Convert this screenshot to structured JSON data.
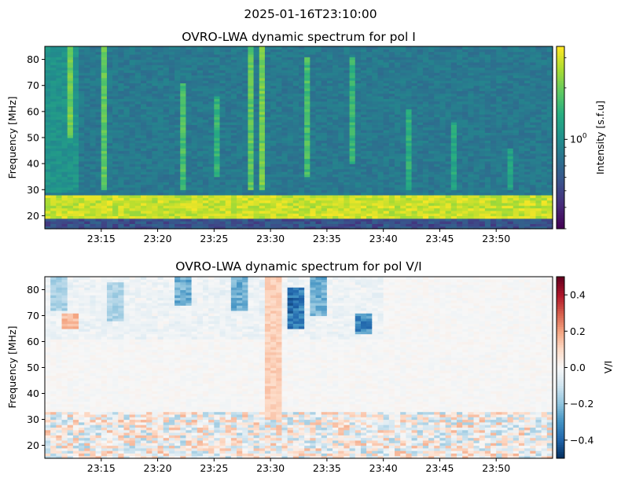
{
  "suptitle": "2025-01-16T23:10:00",
  "chart_data": [
    {
      "type": "heatmap",
      "title": "OVRO-LWA dynamic spectrum for pol I",
      "xlabel": "",
      "ylabel": "Frequency [MHz]",
      "xlim": [
        "23:10:00",
        "23:55:00"
      ],
      "ylim": [
        15,
        85
      ],
      "x_ticks": [
        "23:15",
        "23:20",
        "23:25",
        "23:30",
        "23:35",
        "23:40",
        "23:45",
        "23:50"
      ],
      "y_ticks": [
        20,
        30,
        40,
        50,
        60,
        70,
        80
      ],
      "colormap": "viridis",
      "color_scale": "log",
      "colorbar": {
        "label": "Intensity [s.f.u]",
        "tick_labels": [
          "10^0"
        ],
        "range": [
          0.3,
          3.5
        ]
      },
      "features": {
        "background_level": 0.8,
        "bright_band_MHz": [
          19,
          28
        ],
        "dark_band_MHz": [
          15,
          19
        ],
        "bursts": [
          {
            "time": "23:12",
            "freq_range_MHz": [
              50,
              85
            ],
            "intensity": 2.2
          },
          {
            "time": "23:15",
            "freq_range_MHz": [
              30,
              85
            ],
            "intensity": 2.0
          },
          {
            "time": "23:22",
            "freq_range_MHz": [
              30,
              70
            ],
            "intensity": 1.8
          },
          {
            "time": "23:25",
            "freq_range_MHz": [
              35,
              65
            ],
            "intensity": 1.6
          },
          {
            "time": "23:28",
            "freq_range_MHz": [
              30,
              85
            ],
            "intensity": 2.0
          },
          {
            "time": "23:29",
            "freq_range_MHz": [
              30,
              85
            ],
            "intensity": 2.2
          },
          {
            "time": "23:33",
            "freq_range_MHz": [
              35,
              80
            ],
            "intensity": 1.8
          },
          {
            "time": "23:37",
            "freq_range_MHz": [
              40,
              80
            ],
            "intensity": 1.6
          },
          {
            "time": "23:42",
            "freq_range_MHz": [
              30,
              60
            ],
            "intensity": 1.5
          },
          {
            "time": "23:46",
            "freq_range_MHz": [
              30,
              55
            ],
            "intensity": 1.4
          },
          {
            "time": "23:51",
            "freq_range_MHz": [
              30,
              45
            ],
            "intensity": 1.3
          }
        ]
      }
    },
    {
      "type": "heatmap",
      "title": "OVRO-LWA dynamic spectrum for pol V/I",
      "xlabel": "",
      "ylabel": "Frequency [MHz]",
      "xlim": [
        "23:10:00",
        "23:55:00"
      ],
      "ylim": [
        15,
        85
      ],
      "x_ticks": [
        "23:15",
        "23:20",
        "23:25",
        "23:30",
        "23:35",
        "23:40",
        "23:45",
        "23:50"
      ],
      "y_ticks": [
        20,
        30,
        40,
        50,
        60,
        70,
        80
      ],
      "colormap": "RdBu_r",
      "color_scale": "linear",
      "colorbar": {
        "label": "V/I",
        "range": [
          -0.5,
          0.5
        ],
        "ticks": [
          -0.4,
          -0.2,
          0.0,
          0.2,
          0.4
        ],
        "tick_labels": [
          "−0.4",
          "−0.2",
          "0.0",
          "0.2",
          "0.4"
        ]
      },
      "features": {
        "background_level": 0.0,
        "noisy_band_MHz": [
          15,
          33
        ],
        "patches": [
          {
            "time": "23:11",
            "freq_range_MHz": [
              72,
              85
            ],
            "value": -0.2
          },
          {
            "time": "23:12",
            "freq_range_MHz": [
              65,
              70
            ],
            "value": 0.2
          },
          {
            "time": "23:16",
            "freq_range_MHz": [
              68,
              82
            ],
            "value": -0.2
          },
          {
            "time": "23:22",
            "freq_range_MHz": [
              74,
              85
            ],
            "value": -0.3
          },
          {
            "time": "23:27",
            "freq_range_MHz": [
              72,
              85
            ],
            "value": -0.3
          },
          {
            "time": "23:30",
            "freq_range_MHz": [
              30,
              85
            ],
            "value": 0.15
          },
          {
            "time": "23:32",
            "freq_range_MHz": [
              65,
              80
            ],
            "value": -0.45
          },
          {
            "time": "23:34",
            "freq_range_MHz": [
              70,
              85
            ],
            "value": -0.3
          },
          {
            "time": "23:38",
            "freq_range_MHz": [
              63,
              70
            ],
            "value": -0.4
          }
        ]
      }
    }
  ]
}
